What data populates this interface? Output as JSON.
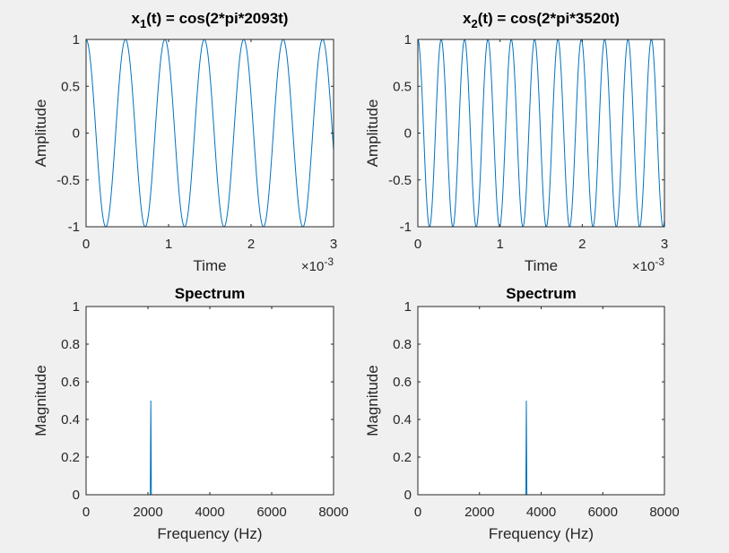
{
  "colors": {
    "background": "#f0f0f0",
    "axes_bg": "#ffffff",
    "axis": "#262626",
    "line": "#0072bd"
  },
  "chart_data": [
    {
      "type": "line",
      "title_main": "x",
      "title_sub": "1",
      "title_rest": "(t) = cos(2*pi*2093t)",
      "xlabel": "Time",
      "ylabel": "Amplitude",
      "x_exponent_base": "×10",
      "x_exponent_power": "-3",
      "xlim": [
        0,
        3
      ],
      "ylim": [
        -1,
        1
      ],
      "xticks": [
        "0",
        "1",
        "2",
        "3"
      ],
      "yticks": [
        "-1",
        "-0.5",
        "0",
        "0.5",
        "1"
      ],
      "frequency_hz": 2093,
      "x_unit_scale": 0.001
    },
    {
      "type": "line",
      "title_main": "x",
      "title_sub": "2",
      "title_rest": "(t) = cos(2*pi*3520t)",
      "xlabel": "Time",
      "ylabel": "Amplitude",
      "x_exponent_base": "×10",
      "x_exponent_power": "-3",
      "xlim": [
        0,
        3
      ],
      "ylim": [
        -1,
        1
      ],
      "xticks": [
        "0",
        "1",
        "2",
        "3"
      ],
      "yticks": [
        "-1",
        "-0.5",
        "0",
        "0.5",
        "1"
      ],
      "frequency_hz": 3520,
      "x_unit_scale": 0.001
    },
    {
      "type": "line",
      "title": "Spectrum",
      "xlabel": "Frequency (Hz)",
      "ylabel": "Magnitude",
      "xlim": [
        0,
        8000
      ],
      "ylim": [
        0,
        1
      ],
      "xticks": [
        "0",
        "2000",
        "4000",
        "6000",
        "8000"
      ],
      "yticks": [
        "0",
        "0.2",
        "0.4",
        "0.6",
        "0.8",
        "1"
      ],
      "peak": {
        "x": 2093,
        "y": 0.5
      }
    },
    {
      "type": "line",
      "title": "Spectrum",
      "xlabel": "Frequency (Hz)",
      "ylabel": "Magnitude",
      "xlim": [
        0,
        8000
      ],
      "ylim": [
        0,
        1
      ],
      "xticks": [
        "0",
        "2000",
        "4000",
        "6000",
        "8000"
      ],
      "yticks": [
        "0",
        "0.2",
        "0.4",
        "0.6",
        "0.8",
        "1"
      ],
      "peak": {
        "x": 3520,
        "y": 0.5
      }
    }
  ]
}
